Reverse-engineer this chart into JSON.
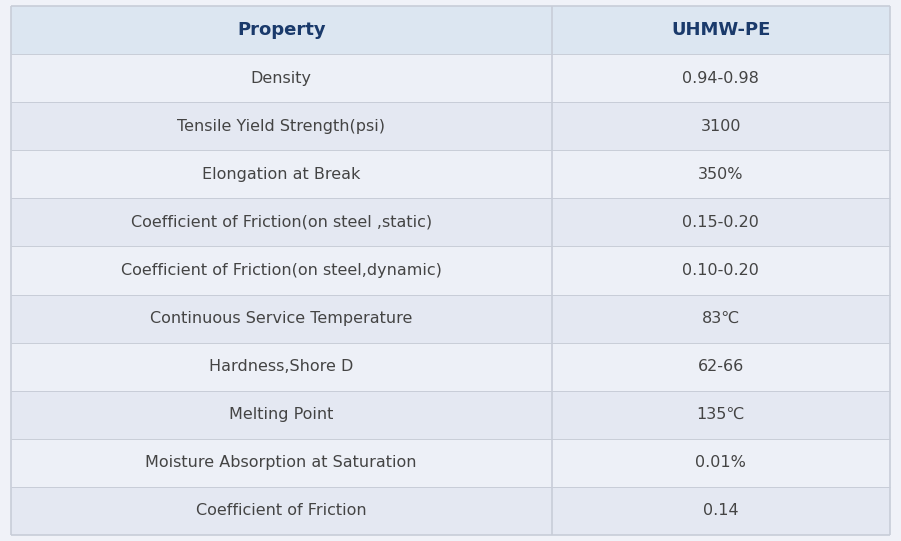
{
  "header": [
    "Property",
    "UHMW-PE"
  ],
  "rows": [
    [
      "Density",
      "0.94-0.98"
    ],
    [
      "Tensile Yield Strength(psi)",
      "3100"
    ],
    [
      "Elongation at Break",
      "350%"
    ],
    [
      "Coefficient of Friction(on steel ,static)",
      "0.15-0.20"
    ],
    [
      "Coefficient of Friction(on steel,dynamic)",
      "0.10-0.20"
    ],
    [
      "Continuous Service Temperature",
      "83℃"
    ],
    [
      "Hardness,Shore D",
      "62-66"
    ],
    [
      "Melting Point",
      "135℃"
    ],
    [
      "Moisture Absorption at Saturation",
      "0.01%"
    ],
    [
      "Coefficient of Friction",
      "0.14"
    ]
  ],
  "header_bg": "#dce6f1",
  "row_bg_light": "#edf0f7",
  "row_bg_dark": "#e4e8f2",
  "header_text_color": "#1a3a6b",
  "row_text_color": "#444444",
  "border_color": "#c8cdd8",
  "col_split_ratio": 0.615,
  "header_fontsize": 13,
  "row_fontsize": 11.5,
  "fig_bg": "#f0f2f8",
  "outer_border_color": "#b8bcc8"
}
